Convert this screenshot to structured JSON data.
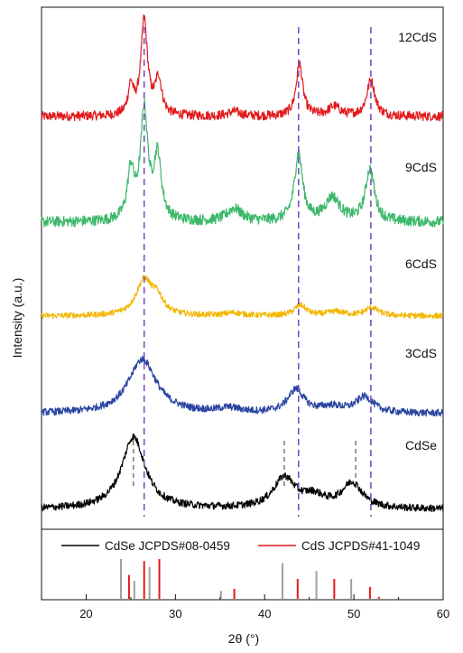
{
  "chart_data": {
    "type": "line",
    "xlabel": "2θ (°)",
    "ylabel": "Intensity (a.u.)",
    "xlim": [
      15,
      60
    ],
    "xticks": [
      20,
      30,
      40,
      50,
      60
    ],
    "grid": false,
    "series": [
      {
        "name": "12CdS",
        "color": "#e31a1c",
        "peaks": [
          {
            "x": 25.0,
            "h": 0.3,
            "w": 0.35
          },
          {
            "x": 26.5,
            "h": 1.0,
            "w": 0.45
          },
          {
            "x": 28.1,
            "h": 0.38,
            "w": 0.45
          },
          {
            "x": 36.6,
            "h": 0.05,
            "w": 0.8
          },
          {
            "x": 43.9,
            "h": 0.55,
            "w": 0.45
          },
          {
            "x": 47.8,
            "h": 0.1,
            "w": 0.8
          },
          {
            "x": 51.9,
            "h": 0.38,
            "w": 0.55
          }
        ],
        "baseline": 0.0,
        "noise": 0.05
      },
      {
        "name": "9CdS",
        "color": "#3cb86a",
        "peaks": [
          {
            "x": 25.0,
            "h": 0.45,
            "w": 0.45
          },
          {
            "x": 26.5,
            "h": 1.0,
            "w": 0.5
          },
          {
            "x": 28.0,
            "h": 0.58,
            "w": 0.5
          },
          {
            "x": 36.6,
            "h": 0.12,
            "w": 1.0
          },
          {
            "x": 43.8,
            "h": 0.62,
            "w": 0.55
          },
          {
            "x": 47.6,
            "h": 0.22,
            "w": 1.0
          },
          {
            "x": 51.8,
            "h": 0.48,
            "w": 0.6
          }
        ],
        "baseline": 0.0,
        "noise": 0.05
      },
      {
        "name": "6CdS",
        "color": "#f2b705",
        "peaks": [
          {
            "x": 26.5,
            "h": 0.6,
            "w": 1.1
          },
          {
            "x": 28.0,
            "h": 0.25,
            "w": 0.8
          },
          {
            "x": 36.5,
            "h": 0.05,
            "w": 1.2
          },
          {
            "x": 44.0,
            "h": 0.18,
            "w": 0.8
          },
          {
            "x": 48.0,
            "h": 0.07,
            "w": 1.2
          },
          {
            "x": 52.0,
            "h": 0.14,
            "w": 0.9
          }
        ],
        "baseline": 0.0,
        "noise": 0.05
      },
      {
        "name": "3CdS",
        "color": "#2a45a0",
        "peaks": [
          {
            "x": 26.3,
            "h": 0.75,
            "w": 1.9
          },
          {
            "x": 36.0,
            "h": 0.06,
            "w": 1.5
          },
          {
            "x": 43.5,
            "h": 0.32,
            "w": 1.1
          },
          {
            "x": 47.5,
            "h": 0.08,
            "w": 1.5
          },
          {
            "x": 51.2,
            "h": 0.22,
            "w": 1.2
          }
        ],
        "baseline": 0.0,
        "noise": 0.05
      },
      {
        "name": "CdSe",
        "color": "#000000",
        "peaks": [
          {
            "x": 25.3,
            "h": 1.0,
            "w": 1.6
          },
          {
            "x": 42.2,
            "h": 0.42,
            "w": 1.5
          },
          {
            "x": 45.5,
            "h": 0.15,
            "w": 1.5
          },
          {
            "x": 49.8,
            "h": 0.35,
            "w": 1.4
          }
        ],
        "baseline": 0.0,
        "noise": 0.05
      }
    ],
    "guide_lines_x": [
      26.5,
      43.8,
      51.9
    ],
    "cdse_ref_lines_x": [
      25.3,
      42.2,
      50.2
    ],
    "legend": [
      {
        "label": "CdSe JCPDS#08-0459",
        "color": "#000000"
      },
      {
        "label": "CdS JCPDS#41-1049",
        "color": "#e31a1c"
      }
    ],
    "references": {
      "CdSe": {
        "color": "#a0a0a0",
        "peaks": [
          {
            "x": 23.9,
            "i": 1.0
          },
          {
            "x": 25.4,
            "i": 0.45
          },
          {
            "x": 27.1,
            "i": 0.8
          },
          {
            "x": 35.1,
            "i": 0.2
          },
          {
            "x": 42.0,
            "i": 0.9
          },
          {
            "x": 45.8,
            "i": 0.7
          },
          {
            "x": 49.7,
            "i": 0.5
          }
        ]
      },
      "CdS": {
        "color": "#e31a1c",
        "peaks": [
          {
            "x": 24.8,
            "i": 0.6
          },
          {
            "x": 26.5,
            "i": 0.95
          },
          {
            "x": 28.2,
            "i": 1.0
          },
          {
            "x": 36.6,
            "i": 0.25
          },
          {
            "x": 43.7,
            "i": 0.5
          },
          {
            "x": 47.8,
            "i": 0.5
          },
          {
            "x": 51.8,
            "i": 0.3
          },
          {
            "x": 52.8,
            "i": 0.05
          }
        ]
      }
    }
  }
}
